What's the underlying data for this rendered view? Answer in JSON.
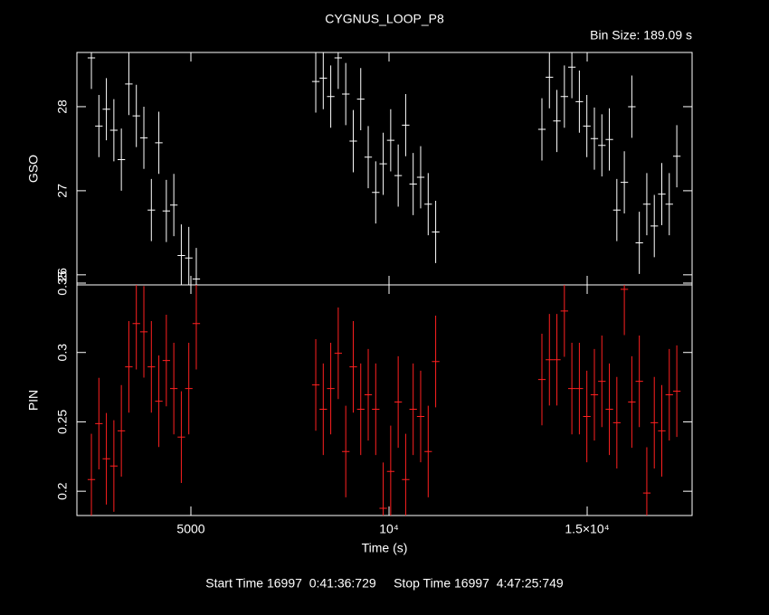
{
  "header": {
    "title": "CYGNUS_LOOP_P8",
    "bin_size": "Bin Size: 189.09 s",
    "footer": "Start Time 16997  0:41:36:729     Stop Time 16997  4:47:25:749"
  },
  "chart_data": [
    {
      "type": "errorbar",
      "ylabel": "GSO",
      "color": "#ffffff",
      "x": [
        2489,
        2678,
        2867,
        3056,
        3245,
        3434,
        3623,
        3813,
        4002,
        4191,
        4380,
        4569,
        4758,
        4947,
        5136,
        8151,
        8340,
        8529,
        8718,
        8908,
        9097,
        9286,
        9475,
        9664,
        9853,
        10042,
        10231,
        10420,
        10609,
        10798,
        10988,
        11177,
        13858,
        14047,
        14236,
        14425,
        14614,
        14803,
        14992,
        15182,
        15371,
        15560,
        15749,
        15938,
        16127,
        16316,
        16505,
        16694,
        16883,
        17072,
        17262
      ],
      "values": [
        28.58,
        27.77,
        27.97,
        27.72,
        27.37,
        28.27,
        27.89,
        27.63,
        26.77,
        27.57,
        26.76,
        26.83,
        26.23,
        26.2,
        25.95,
        28.3,
        28.34,
        28.12,
        28.58,
        28.15,
        27.59,
        28.09,
        27.4,
        26.98,
        27.32,
        27.6,
        27.18,
        27.78,
        27.08,
        27.16,
        26.84,
        26.51,
        27.73,
        28.35,
        27.83,
        28.12,
        28.47,
        28.06,
        27.77,
        27.62,
        27.54,
        27.61,
        26.77,
        27.1,
        28.0,
        26.38,
        26.84,
        26.58,
        26.96,
        26.84,
        27.41
      ],
      "errors": [
        0.37,
        0.37,
        0.37,
        0.37,
        0.37,
        0.37,
        0.37,
        0.37,
        0.37,
        0.37,
        0.37,
        0.37,
        0.37,
        0.37,
        0.37,
        0.37,
        0.37,
        0.37,
        0.37,
        0.37,
        0.37,
        0.37,
        0.37,
        0.37,
        0.37,
        0.37,
        0.37,
        0.37,
        0.37,
        0.37,
        0.37,
        0.37,
        0.37,
        0.37,
        0.37,
        0.37,
        0.37,
        0.37,
        0.37,
        0.37,
        0.37,
        0.37,
        0.37,
        0.37,
        0.37,
        0.37,
        0.37,
        0.37,
        0.37,
        0.37,
        0.37
      ],
      "xerr": 94.5,
      "xlim": [
        2123,
        17648
      ],
      "xticks": [
        5000,
        10000,
        15000
      ],
      "ylim": [
        25.88,
        28.645
      ],
      "yticks": [
        26,
        27,
        28
      ]
    },
    {
      "type": "errorbar",
      "ylabel": "PIN",
      "xlabel": "Time (s)",
      "color": "#ff2020",
      "x": [
        2489,
        2678,
        2867,
        3056,
        3245,
        3434,
        3623,
        3813,
        4002,
        4191,
        4380,
        4569,
        4758,
        4947,
        5136,
        8151,
        8340,
        8529,
        8718,
        8908,
        9097,
        9286,
        9475,
        9664,
        9853,
        10042,
        10231,
        10420,
        10609,
        10798,
        10988,
        11177,
        13858,
        14047,
        14236,
        14425,
        14614,
        14803,
        14992,
        15182,
        15371,
        15560,
        15749,
        15938,
        16127,
        16316,
        16505,
        16694,
        16883,
        17072,
        17262
      ],
      "values": [
        0.2084,
        0.2487,
        0.2234,
        0.2182,
        0.2435,
        0.2896,
        0.3208,
        0.3149,
        0.2896,
        0.2649,
        0.2942,
        0.274,
        0.239,
        0.274,
        0.3208,
        0.2766,
        0.2591,
        0.274,
        0.2994,
        0.2286,
        0.2896,
        0.2591,
        0.2695,
        0.2591,
        0.1877,
        0.2143,
        0.2643,
        0.2084,
        0.2591,
        0.2539,
        0.2286,
        0.2935,
        0.2805,
        0.2948,
        0.2948,
        0.3299,
        0.274,
        0.274,
        0.2539,
        0.2695,
        0.2792,
        0.2591,
        0.2494,
        0.3455,
        0.2643,
        0.2792,
        0.1987,
        0.2494,
        0.2435,
        0.2695,
        0.2721
      ],
      "errors": [
        0.033,
        0.033,
        0.033,
        0.033,
        0.033,
        0.033,
        0.033,
        0.033,
        0.033,
        0.033,
        0.033,
        0.033,
        0.033,
        0.033,
        0.033,
        0.033,
        0.033,
        0.033,
        0.033,
        0.033,
        0.033,
        0.033,
        0.033,
        0.033,
        0.033,
        0.033,
        0.033,
        0.033,
        0.033,
        0.033,
        0.033,
        0.033,
        0.033,
        0.033,
        0.033,
        0.033,
        0.033,
        0.033,
        0.033,
        0.033,
        0.033,
        0.033,
        0.033,
        0.033,
        0.033,
        0.033,
        0.033,
        0.033,
        0.033,
        0.033,
        0.033
      ],
      "xerr": 94.5,
      "xlim": [
        2123,
        17648
      ],
      "xticks": [
        {
          "value": 5000,
          "label": "5000"
        },
        {
          "value": 10000,
          "label": "10⁴"
        },
        {
          "value": 15000,
          "label": "1.5×10⁴"
        }
      ],
      "ylim": [
        0.1825,
        0.3487
      ],
      "yticks": [
        0.2,
        0.25,
        0.3,
        0.35
      ]
    }
  ]
}
